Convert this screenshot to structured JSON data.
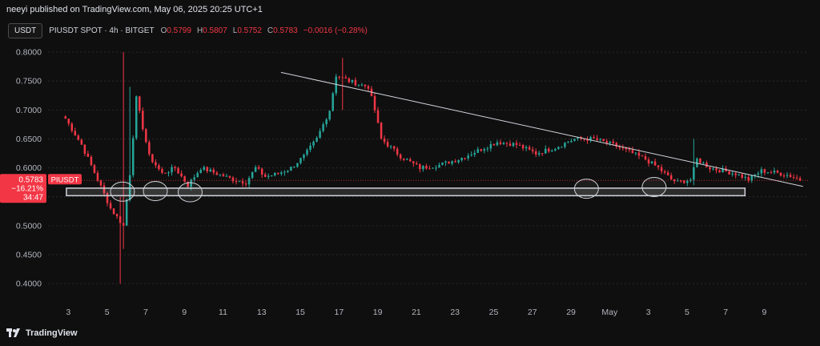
{
  "published": "neeyi published on TradingView.com, May 06, 2025 20:25 UTC+1",
  "currency": "USDT",
  "symbol_line": "PIUSDT SPOT · 4h · BITGET",
  "ohlc": [
    {
      "k": "O",
      "v": "0.5799"
    },
    {
      "k": "H",
      "v": "0.5807"
    },
    {
      "k": "L",
      "v": "0.5752"
    },
    {
      "k": "C",
      "v": "0.5783"
    },
    {
      "k": "",
      "v": "−0.0016 (−0.28%)"
    }
  ],
  "price_badge": {
    "price": "0.5783",
    "change": "−16.21%",
    "countdown": "34:47",
    "symbol": "PIUSDT"
  },
  "brand": "TradingView",
  "colors": {
    "up": "#26a69a",
    "down": "#f23645",
    "bg": "#0f0f0f",
    "grid": "#2a2a2a",
    "trend": "#d1d4dc",
    "zone": "#d1d4dc"
  },
  "chart_data": {
    "type": "candlestick",
    "timeframe": "4h",
    "y_tick_labels": [
      "0.8000",
      "0.7500",
      "0.7000",
      "0.6500",
      "0.6000",
      "0.5500",
      "0.5000",
      "0.4500",
      "0.4000"
    ],
    "y_ticks": [
      0.8,
      0.75,
      0.7,
      0.65,
      0.6,
      0.55,
      0.5,
      0.45,
      0.4
    ],
    "ylim": [
      0.385,
      0.825
    ],
    "x_tick_labels": [
      "3",
      "5",
      "7",
      "9",
      "11",
      "13",
      "15",
      "17",
      "19",
      "21",
      "23",
      "25",
      "27",
      "29",
      "May",
      "3",
      "5",
      "7",
      "9"
    ],
    "x_ticks_day": [
      3,
      5,
      7,
      9,
      11,
      13,
      15,
      17,
      19,
      21,
      23,
      25,
      27,
      29,
      31,
      33,
      35,
      37,
      39
    ],
    "xlim_day": [
      1.95,
      41.3
    ],
    "grid": true,
    "current_price": 0.5783,
    "candle_days_start": 2.85,
    "candles_per_day": 6,
    "anchors_close": [
      [
        0,
        0.685
      ],
      [
        5,
        0.64
      ],
      [
        10,
        0.58
      ],
      [
        14,
        0.53
      ],
      [
        18,
        0.5
      ],
      [
        20,
        0.59
      ],
      [
        22,
        0.72
      ],
      [
        26,
        0.62
      ],
      [
        30,
        0.59
      ],
      [
        34,
        0.6
      ],
      [
        38,
        0.57
      ],
      [
        42,
        0.6
      ],
      [
        47,
        0.59
      ],
      [
        52,
        0.58
      ],
      [
        56,
        0.575
      ],
      [
        59,
        0.6
      ],
      [
        62,
        0.585
      ],
      [
        66,
        0.59
      ],
      [
        70,
        0.6
      ],
      [
        74,
        0.62
      ],
      [
        78,
        0.65
      ],
      [
        82,
        0.7
      ],
      [
        84,
        0.76
      ],
      [
        88,
        0.75
      ],
      [
        94,
        0.74
      ],
      [
        96,
        0.7
      ],
      [
        98,
        0.65
      ],
      [
        104,
        0.62
      ],
      [
        110,
        0.6
      ],
      [
        116,
        0.605
      ],
      [
        122,
        0.615
      ],
      [
        128,
        0.63
      ],
      [
        134,
        0.645
      ],
      [
        140,
        0.64
      ],
      [
        146,
        0.625
      ],
      [
        152,
        0.635
      ],
      [
        158,
        0.65
      ],
      [
        164,
        0.65
      ],
      [
        170,
        0.64
      ],
      [
        176,
        0.625
      ],
      [
        180,
        0.615
      ],
      [
        184,
        0.6
      ],
      [
        188,
        0.58
      ],
      [
        190,
        0.575
      ],
      [
        194,
        0.58
      ],
      [
        196,
        0.615
      ],
      [
        200,
        0.6
      ],
      [
        204,
        0.595
      ],
      [
        208,
        0.59
      ],
      [
        212,
        0.58
      ],
      [
        216,
        0.595
      ],
      [
        220,
        0.592
      ],
      [
        224,
        0.588
      ],
      [
        227,
        0.582
      ],
      [
        228,
        0.5783
      ]
    ],
    "annotations": {
      "trendline": {
        "from": [
          14.0,
          0.765
        ],
        "to": [
          41.0,
          0.568
        ]
      },
      "support_zone": {
        "x": [
          2.9,
          38.0
        ],
        "y": [
          0.552,
          0.565
        ]
      },
      "circles_day": [
        [
          5.8,
          0.559
        ],
        [
          7.5,
          0.56
        ],
        [
          9.3,
          0.558
        ],
        [
          29.8,
          0.564
        ],
        [
          33.3,
          0.567
        ]
      ]
    }
  }
}
